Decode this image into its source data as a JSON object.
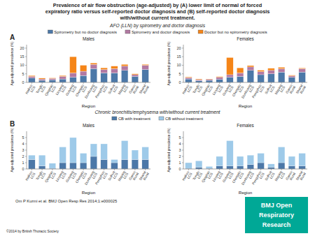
{
  "title": [
    "Prevalence of air flow obstruction (age-adjusted) by (A) lower limit of normal of forced",
    "expiratory ratio versus self-reported doctor diagnosis and (B) self-reported doctor diagnosis",
    "with/without current treatment."
  ],
  "annotations": [
    "Om P Kurmi et al. BMJ Open Resp Res 2014;1:e000025",
    "©2014 by British Thoracic Society",
    "BMJ Open",
    "Respiratory",
    "Research"
  ],
  "color": "#00A896",
  "chart_data": [
    {
      "type": "bar",
      "stacked": true,
      "title": "Males",
      "subtitle": "AFO (LLN) by spirometry and doctor diagnosis",
      "annotations": [
        "A"
      ],
      "x_label": "Region",
      "y_label": "Age-adjusted prevalence (%)",
      "categories": [
        "Haikou\nLCS",
        "Tonglu\nLCS",
        "Qingdao\nLCS",
        "Liuyang\nLCS",
        "Guiyang\nLCS",
        "Chengdu\nLCS",
        "Dunhuang\nLCS",
        "Pengzhou\nLCS",
        "Suihua\nLCS",
        "Maping\nLCS",
        "Gansu\nRural",
        "Shanxi\nRural"
      ],
      "series": [
        {
          "name": "Spirometry but no doctor diagnosis",
          "color": "#4c78a8",
          "values": [
            2.5,
            1.2,
            1.5,
            2.0,
            3.0,
            4.0,
            8.0,
            5.5,
            5.5,
            7.0,
            3.5,
            7.5
          ]
        },
        {
          "name": "Spirometry and doctor diagnosis",
          "color": "#b279a2",
          "values": [
            1.0,
            0.8,
            0.8,
            1.5,
            2.5,
            2.5,
            2.5,
            2.0,
            2.5,
            2.5,
            1.0,
            2.5
          ]
        },
        {
          "name": "Doctor but no spirometry diagnosis",
          "color": "#f58518",
          "values": [
            0.5,
            0.5,
            0.3,
            0.5,
            9.5,
            3.5,
            0.8,
            1.0,
            1.5,
            1.0,
            0.5,
            0.5
          ]
        }
      ],
      "ylim": [
        0,
        22
      ],
      "yticks": [
        0,
        5,
        10,
        15,
        20
      ],
      "legend": "top"
    },
    {
      "type": "bar",
      "stacked": true,
      "title": "Females",
      "x_label": "Region",
      "y_label": "Age-adjusted prevalence (%)",
      "categories": [
        "Haikou\nLCS",
        "Tonglu\nLCS",
        "Qingdao\nLCS",
        "Liuyang\nLCS",
        "Guiyang\nLCS",
        "Chengdu\nLCS",
        "Dunhuang\nLCS",
        "Pengzhou\nLCS",
        "Suihua\nLCS",
        "Maping\nLCS",
        "Gansu\nRural",
        "Shanxi\nRural"
      ],
      "series": [
        {
          "color": "#4c78a8",
          "values": [
            2.0,
            1.0,
            1.2,
            1.8,
            3.0,
            3.5,
            7.0,
            4.5,
            5.0,
            6.0,
            3.0,
            6.0
          ]
        },
        {
          "color": "#b279a2",
          "values": [
            0.8,
            0.6,
            0.6,
            1.2,
            1.5,
            2.0,
            2.0,
            1.8,
            2.0,
            2.0,
            0.8,
            2.0
          ]
        },
        {
          "color": "#f58518",
          "values": [
            0.4,
            0.4,
            0.2,
            0.4,
            10.0,
            3.0,
            0.8,
            0.8,
            1.2,
            0.8,
            0.4,
            0.4
          ]
        }
      ],
      "ylim": [
        0,
        22
      ],
      "yticks": [
        0,
        5,
        10,
        15,
        20
      ]
    },
    {
      "type": "bar",
      "stacked": true,
      "title": "Males",
      "subtitle": "Chronic bronchitis/emphysema with/without current treatment",
      "annotations": [
        "B"
      ],
      "x_label": "Region",
      "y_label": "Age-adjusted prevalence (%)",
      "categories": [
        "Haikou\nLCS",
        "Tonglu\nLCS",
        "Qingdao\nLCS",
        "Liuyang\nLCS",
        "Guiyang\nLCS",
        "Chengdu\nLCS",
        "Dunhuang\nLCS",
        "Pengzhou\nLCS",
        "Suihua\nLCS",
        "Maping\nLCS",
        "Gansu\nRural",
        "Shanxi\nRural"
      ],
      "series": [
        {
          "name": "CB with treatment",
          "color": "#4c78a8",
          "values": [
            1.5,
            0.5,
            0.1,
            1.0,
            1.0,
            1.0,
            2.0,
            1.5,
            1.0,
            1.5,
            1.5,
            1.5
          ]
        },
        {
          "name": "CB without treatment",
          "color": "#9ecae9",
          "values": [
            0.7,
            1.7,
            0.8,
            2.5,
            4.0,
            1.5,
            2.0,
            2.5,
            0.5,
            3.0,
            1.5,
            2.0
          ]
        }
      ],
      "ylim": [
        0,
        6
      ],
      "yticks": [
        0,
        1,
        2,
        3,
        4,
        5
      ],
      "legend": "top"
    },
    {
      "type": "bar",
      "stacked": true,
      "title": "Females",
      "x_label": "Region",
      "y_label": "Age-adjusted prevalence (%)",
      "categories": [
        "Haikou\nLCS",
        "Tonglu\nLCS",
        "Qingdao\nLCS",
        "Liuyang\nLCS",
        "Guiyang\nLCS",
        "Chengdu\nLCS",
        "Dunhuang\nLCS",
        "Pengzhou\nLCS",
        "Suihua\nLCS",
        "Maping\nLCS",
        "Gansu\nRural",
        "Shanxi\nRural"
      ],
      "series": [
        {
          "color": "#4c78a8",
          "values": [
            0.1,
            0.3,
            0.1,
            0.5,
            0.5,
            0.5,
            0.7,
            1.0,
            0.3,
            1.0,
            0.5,
            0.5
          ]
        },
        {
          "color": "#9ecae9",
          "values": [
            0.9,
            1.0,
            0.3,
            1.5,
            4.0,
            1.5,
            1.5,
            1.5,
            0.5,
            2.5,
            1.5,
            2.0
          ]
        }
      ],
      "ylim": [
        0,
        6
      ],
      "yticks": [
        0,
        1,
        2,
        3,
        4,
        5
      ]
    }
  ]
}
